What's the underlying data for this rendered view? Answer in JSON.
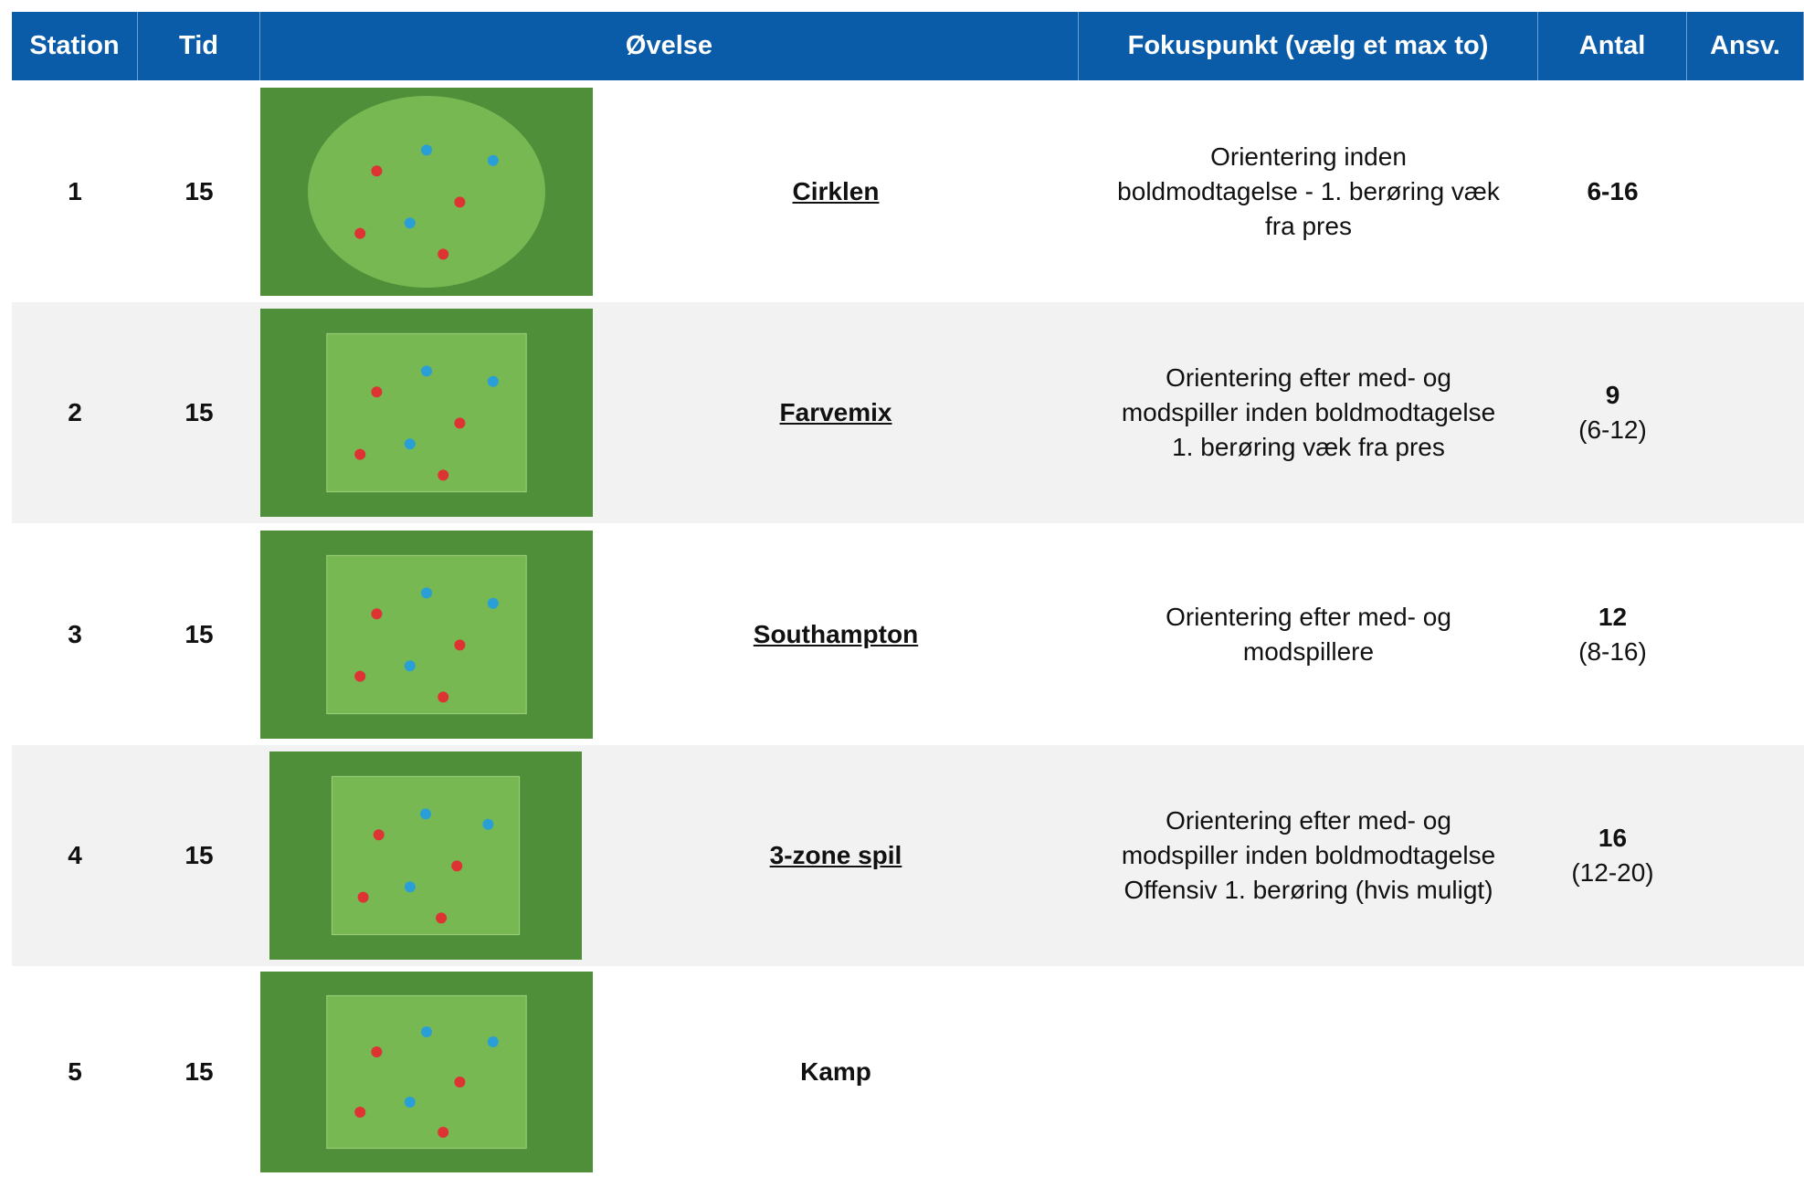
{
  "header": [
    "Station",
    "Tid",
    "Øvelse",
    "Fokuspunkt (vælg et max to)",
    "Antal",
    "Ansv."
  ],
  "rows": [
    {
      "station": "1",
      "tid": "15",
      "name": "Cirklen",
      "focus": [
        "Orientering inden",
        "boldmodtagelse - 1. berøring væk",
        "fra pres"
      ],
      "antal": "6-16"
    },
    {
      "station": "2",
      "tid": "15",
      "name": "Farvemix",
      "focus": [
        "Orientering efter med- og",
        "modspiller inden boldmodtagelse",
        "1. berøring væk fra pres"
      ],
      "antal": "9",
      "antal_range": "(6-12)"
    },
    {
      "station": "3",
      "tid": "15",
      "name": "Southampton",
      "focus": [
        "Orientering efter med- og",
        "modspillere"
      ],
      "antal": "12",
      "antal_range": "(8-16)"
    },
    {
      "station": "4",
      "tid": "15",
      "name": "3-zone spil",
      "focus": [
        "Orientering efter med- og",
        "modspiller inden boldmodtagelse",
        "Offensiv 1. berøring (hvis muligt)"
      ],
      "antal": "16",
      "antal_range": "(12-20)"
    },
    {
      "station": "5",
      "tid": "15",
      "name": "Kamp"
    }
  ]
}
